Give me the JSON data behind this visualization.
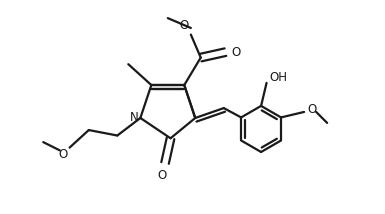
{
  "bg_color": "#ffffff",
  "line_color": "#1a1a1a",
  "line_width": 1.6,
  "figsize": [
    3.85,
    2.14
  ],
  "dpi": 100,
  "xlim": [
    0,
    7.0
  ],
  "ylim": [
    0,
    3.9
  ]
}
